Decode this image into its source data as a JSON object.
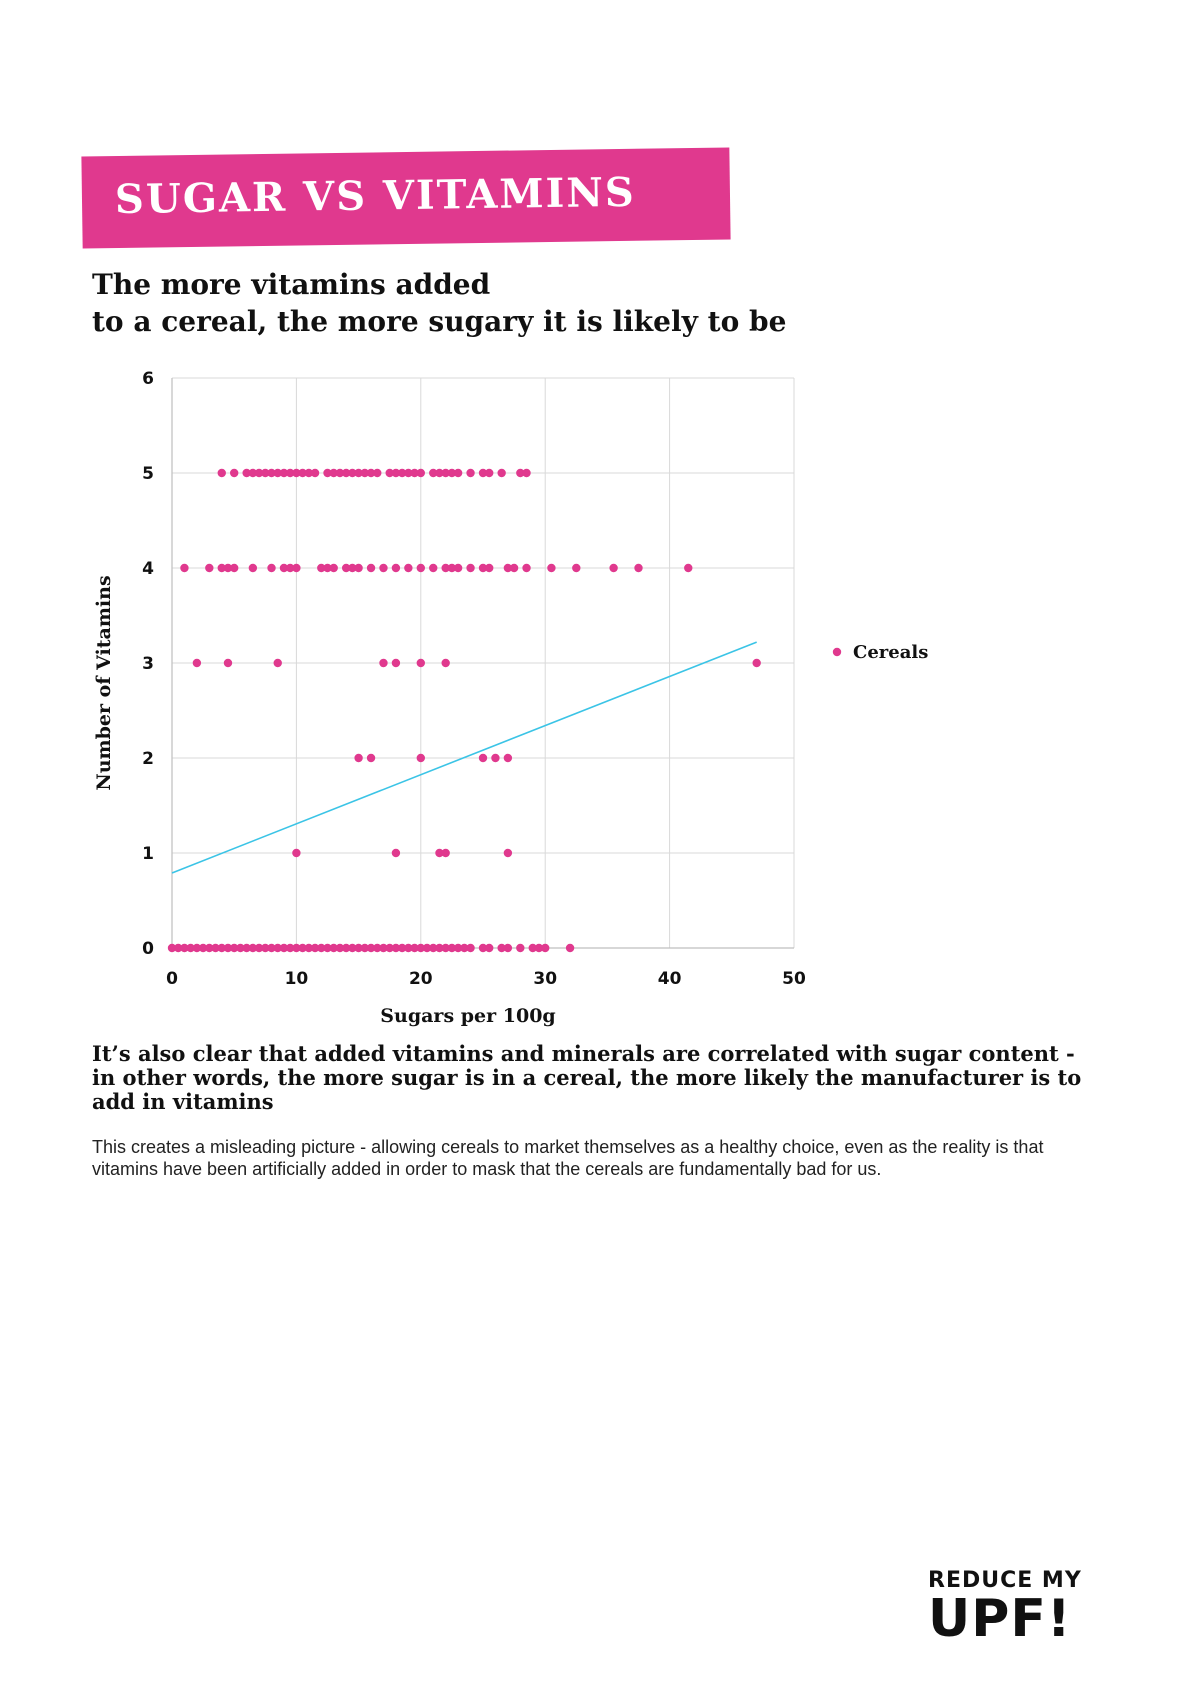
{
  "header": {
    "banner_title": "SUGAR VS VITAMINS",
    "subtitle_line1": "The more vitamins added",
    "subtitle_line2": "to a cereal, the more sugary it is likely to be",
    "banner_color": "#e0398e"
  },
  "chart_data": {
    "type": "scatter",
    "title": "",
    "xlabel": "Sugars per 100g",
    "ylabel": "Number of Vitamins",
    "xlim": [
      0,
      50
    ],
    "ylim": [
      0,
      6
    ],
    "xticks": [
      0,
      10,
      20,
      30,
      40,
      50
    ],
    "yticks": [
      0,
      1,
      2,
      3,
      4,
      5,
      6
    ],
    "grid": true,
    "legend": "right",
    "series": [
      {
        "name": "Cereals",
        "color": "#e0398e",
        "points": [
          [
            4,
            5
          ],
          [
            5,
            5
          ],
          [
            6,
            5
          ],
          [
            6.5,
            5
          ],
          [
            7,
            5
          ],
          [
            7.5,
            5
          ],
          [
            8,
            5
          ],
          [
            8.5,
            5
          ],
          [
            9,
            5
          ],
          [
            9.5,
            5
          ],
          [
            10,
            5
          ],
          [
            10.5,
            5
          ],
          [
            11,
            5
          ],
          [
            11.5,
            5
          ],
          [
            12.5,
            5
          ],
          [
            13,
            5
          ],
          [
            13.5,
            5
          ],
          [
            14,
            5
          ],
          [
            14.5,
            5
          ],
          [
            15,
            5
          ],
          [
            15.5,
            5
          ],
          [
            16,
            5
          ],
          [
            16.5,
            5
          ],
          [
            17.5,
            5
          ],
          [
            18,
            5
          ],
          [
            18.5,
            5
          ],
          [
            19,
            5
          ],
          [
            19.5,
            5
          ],
          [
            20,
            5
          ],
          [
            21,
            5
          ],
          [
            21.5,
            5
          ],
          [
            22,
            5
          ],
          [
            22.5,
            5
          ],
          [
            23,
            5
          ],
          [
            24,
            5
          ],
          [
            25,
            5
          ],
          [
            25.5,
            5
          ],
          [
            26.5,
            5
          ],
          [
            28,
            5
          ],
          [
            28.5,
            5
          ],
          [
            1,
            4
          ],
          [
            3,
            4
          ],
          [
            4,
            4
          ],
          [
            4.5,
            4
          ],
          [
            5,
            4
          ],
          [
            6.5,
            4
          ],
          [
            8,
            4
          ],
          [
            9,
            4
          ],
          [
            9.5,
            4
          ],
          [
            10,
            4
          ],
          [
            12,
            4
          ],
          [
            12.5,
            4
          ],
          [
            13,
            4
          ],
          [
            14,
            4
          ],
          [
            14.5,
            4
          ],
          [
            15,
            4
          ],
          [
            16,
            4
          ],
          [
            17,
            4
          ],
          [
            18,
            4
          ],
          [
            19,
            4
          ],
          [
            20,
            4
          ],
          [
            21,
            4
          ],
          [
            22,
            4
          ],
          [
            22.5,
            4
          ],
          [
            23,
            4
          ],
          [
            24,
            4
          ],
          [
            25,
            4
          ],
          [
            25.5,
            4
          ],
          [
            27,
            4
          ],
          [
            27.5,
            4
          ],
          [
            28.5,
            4
          ],
          [
            30.5,
            4
          ],
          [
            32.5,
            4
          ],
          [
            35.5,
            4
          ],
          [
            37.5,
            4
          ],
          [
            41.5,
            4
          ],
          [
            2,
            3
          ],
          [
            4.5,
            3
          ],
          [
            8.5,
            3
          ],
          [
            17,
            3
          ],
          [
            18,
            3
          ],
          [
            20,
            3
          ],
          [
            22,
            3
          ],
          [
            47,
            3
          ],
          [
            15,
            2
          ],
          [
            16,
            2
          ],
          [
            20,
            2
          ],
          [
            25,
            2
          ],
          [
            26,
            2
          ],
          [
            27,
            2
          ],
          [
            10,
            1
          ],
          [
            18,
            1
          ],
          [
            21.5,
            1
          ],
          [
            22,
            1
          ],
          [
            27,
            1
          ],
          [
            0,
            0
          ],
          [
            0.5,
            0
          ],
          [
            1,
            0
          ],
          [
            1.5,
            0
          ],
          [
            2,
            0
          ],
          [
            2.5,
            0
          ],
          [
            3,
            0
          ],
          [
            3.5,
            0
          ],
          [
            4,
            0
          ],
          [
            4.5,
            0
          ],
          [
            5,
            0
          ],
          [
            5.5,
            0
          ],
          [
            6,
            0
          ],
          [
            6.5,
            0
          ],
          [
            7,
            0
          ],
          [
            7.5,
            0
          ],
          [
            8,
            0
          ],
          [
            8.5,
            0
          ],
          [
            9,
            0
          ],
          [
            9.5,
            0
          ],
          [
            10,
            0
          ],
          [
            10.5,
            0
          ],
          [
            11,
            0
          ],
          [
            11.5,
            0
          ],
          [
            12,
            0
          ],
          [
            12.5,
            0
          ],
          [
            13,
            0
          ],
          [
            13.5,
            0
          ],
          [
            14,
            0
          ],
          [
            14.5,
            0
          ],
          [
            15,
            0
          ],
          [
            15.5,
            0
          ],
          [
            16,
            0
          ],
          [
            16.5,
            0
          ],
          [
            17,
            0
          ],
          [
            17.5,
            0
          ],
          [
            18,
            0
          ],
          [
            18.5,
            0
          ],
          [
            19,
            0
          ],
          [
            19.5,
            0
          ],
          [
            20,
            0
          ],
          [
            20.5,
            0
          ],
          [
            21,
            0
          ],
          [
            21.5,
            0
          ],
          [
            22,
            0
          ],
          [
            22.5,
            0
          ],
          [
            23,
            0
          ],
          [
            23.5,
            0
          ],
          [
            24,
            0
          ],
          [
            25,
            0
          ],
          [
            25.5,
            0
          ],
          [
            26.5,
            0
          ],
          [
            27,
            0
          ],
          [
            28,
            0
          ],
          [
            29,
            0
          ],
          [
            29.5,
            0
          ],
          [
            30,
            0
          ],
          [
            32,
            0
          ]
        ]
      }
    ],
    "trendline": {
      "type": "linear",
      "color": "#3bc4e6",
      "x_start": 0,
      "y_start": 0.79,
      "x_end": 47,
      "y_end": 3.22
    }
  },
  "text": {
    "finding": "It’s also clear that added vitamins and minerals are correlated with sugar content - in other words, the more sugar is in a cereal, the more likely the manufacturer is to add in vitamins",
    "body": "This creates a misleading picture - allowing cereals to market themselves as a healthy choice, even as the reality is that vitamins have been artificially added in order to mask that the cereals are fundamentally bad for us."
  },
  "logo": {
    "line1": "REDUCE MY",
    "line2": "UPF!"
  }
}
